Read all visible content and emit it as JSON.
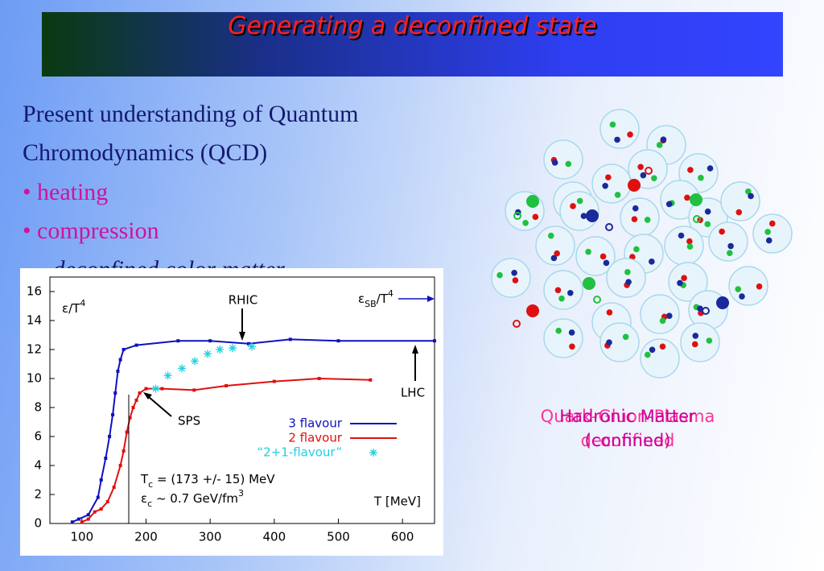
{
  "header": {
    "title": "Generating a deconfined state"
  },
  "body": {
    "lines": [
      "Present understanding of Quantum",
      "Chromodynamics (QCD)"
    ],
    "bullets": [
      "• heating",
      "• compression"
    ],
    "conclusion": "→ deconfined color matter"
  },
  "figure": {
    "labels": [
      {
        "lines": [
          "Quark-Gluon-Plasma",
          "deconfined"
        ],
        "color": "#ff3399"
      },
      {
        "lines": [
          "Hadronic Matter",
          "(confined)"
        ],
        "color": "#cc0099"
      }
    ]
  },
  "chart_data": {
    "type": "line",
    "xlim": [
      50,
      650
    ],
    "ylim": [
      0,
      17
    ],
    "xticks": [
      100,
      200,
      300,
      400,
      500,
      600
    ],
    "yticks": [
      0,
      2,
      4,
      6,
      8,
      10,
      12,
      14,
      16
    ],
    "series": [
      {
        "name": "3 flavour",
        "color": "#1010c0",
        "marker": "square",
        "line": true,
        "x": [
          85,
          95,
          110,
          125,
          130,
          137,
          143,
          148,
          152,
          156,
          160,
          165,
          185,
          250,
          300,
          360,
          425,
          500,
          650
        ],
        "values": [
          0.1,
          0.3,
          0.6,
          1.8,
          3,
          4.5,
          6,
          7.5,
          9,
          10.5,
          11.3,
          12,
          12.3,
          12.6,
          12.6,
          12.4,
          12.7,
          12.6,
          12.6
        ]
      },
      {
        "name": "2 flavour",
        "color": "#e01010",
        "marker": "square",
        "line": true,
        "x": [
          100,
          110,
          120,
          130,
          140,
          150,
          160,
          165,
          170,
          175,
          180,
          185,
          190,
          200,
          225,
          275,
          325,
          400,
          470,
          550
        ],
        "values": [
          0.1,
          0.3,
          0.8,
          1.0,
          1.5,
          2.5,
          4,
          5,
          6.3,
          7.3,
          8,
          8.5,
          9,
          9.3,
          9.3,
          9.2,
          9.5,
          9.8,
          10,
          9.9
        ]
      },
      {
        "name": "“2+1-flavour”",
        "color": "#20d0e0",
        "marker": "star",
        "line": false,
        "x": [
          215,
          234,
          256,
          276,
          296,
          315,
          335,
          365
        ],
        "values": [
          9.3,
          10.2,
          10.7,
          11.2,
          11.7,
          12.0,
          12.1,
          12.2
        ]
      }
    ],
    "annotations": {
      "ylabel": [
        {
          "text": "ε/T"
        },
        {
          "text": "4",
          "shift": "sup"
        }
      ],
      "sb": [
        {
          "text": "ε"
        },
        {
          "text": "SB",
          "shift": "sub"
        },
        {
          "text": "/T"
        },
        {
          "text": "4",
          "shift": "sup"
        }
      ],
      "rhic": "RHIC",
      "lhc": "LHC",
      "sps": "SPS",
      "tc": [
        {
          "text": "T"
        },
        {
          "text": "c",
          "shift": "sub"
        },
        {
          "text": " = (173 +/- 15) MeV"
        }
      ],
      "ec": [
        {
          "text": "ε"
        },
        {
          "text": "c",
          "shift": "sub"
        },
        {
          "text": " ~ 0.7 GeV/fm"
        },
        {
          "text": "3",
          "shift": "sup"
        }
      ],
      "xlabel": "T [MeV]"
    }
  }
}
